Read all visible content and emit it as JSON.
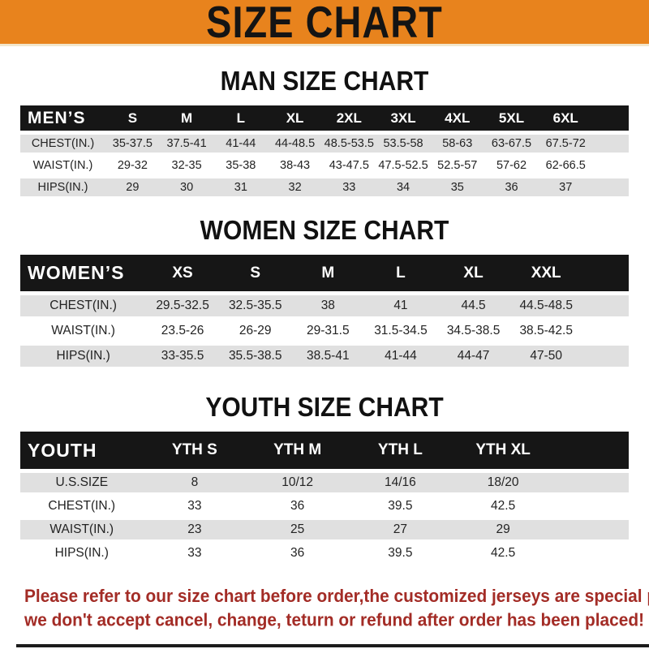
{
  "banner": {
    "title": "SIZE CHART"
  },
  "colors": {
    "banner_bg": "#E8831D",
    "bar_bg": "#161616",
    "row_gray": "#E0E0E0",
    "footer_red": "#A32C26",
    "text_dark": "#232323"
  },
  "sections": [
    {
      "heading": "MAN SIZE CHART",
      "header_label": "MEN’S",
      "columns": [
        "S",
        "M",
        "L",
        "XL",
        "2XL",
        "3XL",
        "4XL",
        "5XL",
        "6XL"
      ],
      "rows": [
        {
          "label": "CHEST(IN.)",
          "values": [
            "35-37.5",
            "37.5-41",
            "41-44",
            "44-48.5",
            "48.5-53.5",
            "53.5-58",
            "58-63",
            "63-67.5",
            "67.5-72"
          ]
        },
        {
          "label": "WAIST(IN.)",
          "values": [
            "29-32",
            "32-35",
            "35-38",
            "38-43",
            "43-47.5",
            "47.5-52.5",
            "52.5-57",
            "57-62",
            "62-66.5"
          ]
        },
        {
          "label": "HIPS(IN.)",
          "values": [
            "29",
            "30",
            "31",
            "32",
            "33",
            "34",
            "35",
            "36",
            "37"
          ]
        }
      ]
    },
    {
      "heading": "WOMEN SIZE CHART",
      "header_label": "WOMEN’S",
      "columns": [
        "XS",
        "S",
        "M",
        "L",
        "XL",
        "XXL"
      ],
      "rows": [
        {
          "label": "CHEST(IN.)",
          "values": [
            "29.5-32.5",
            "32.5-35.5",
            "38",
            "41",
            "44.5",
            "44.5-48.5"
          ]
        },
        {
          "label": "WAIST(IN.)",
          "values": [
            "23.5-26",
            "26-29",
            "29-31.5",
            "31.5-34.5",
            "34.5-38.5",
            "38.5-42.5"
          ]
        },
        {
          "label": "HIPS(IN.)",
          "values": [
            "33-35.5",
            "35.5-38.5",
            "38.5-41",
            "41-44",
            "44-47",
            "47-50"
          ]
        }
      ]
    },
    {
      "heading": "YOUTH SIZE CHART",
      "header_label": "YOUTH",
      "columns": [
        "YTH S",
        "YTH M",
        "YTH L",
        "YTH XL"
      ],
      "rows": [
        {
          "label": "U.S.SIZE",
          "values": [
            "8",
            "10/12",
            "14/16",
            "18/20"
          ]
        },
        {
          "label": "CHEST(IN.)",
          "values": [
            "33",
            "36",
            "39.5",
            "42.5"
          ]
        },
        {
          "label": "WAIST(IN.)",
          "values": [
            "23",
            "25",
            "27",
            "29"
          ]
        },
        {
          "label": "HIPS(IN.)",
          "values": [
            "33",
            "36",
            "39.5",
            "42.5"
          ]
        }
      ]
    }
  ],
  "footer": {
    "line1": "Please refer to our size chart before order,the customized jerseys are special products,",
    "line2": "we don't accept cancel, change, teturn or refund after order has been placed!"
  }
}
